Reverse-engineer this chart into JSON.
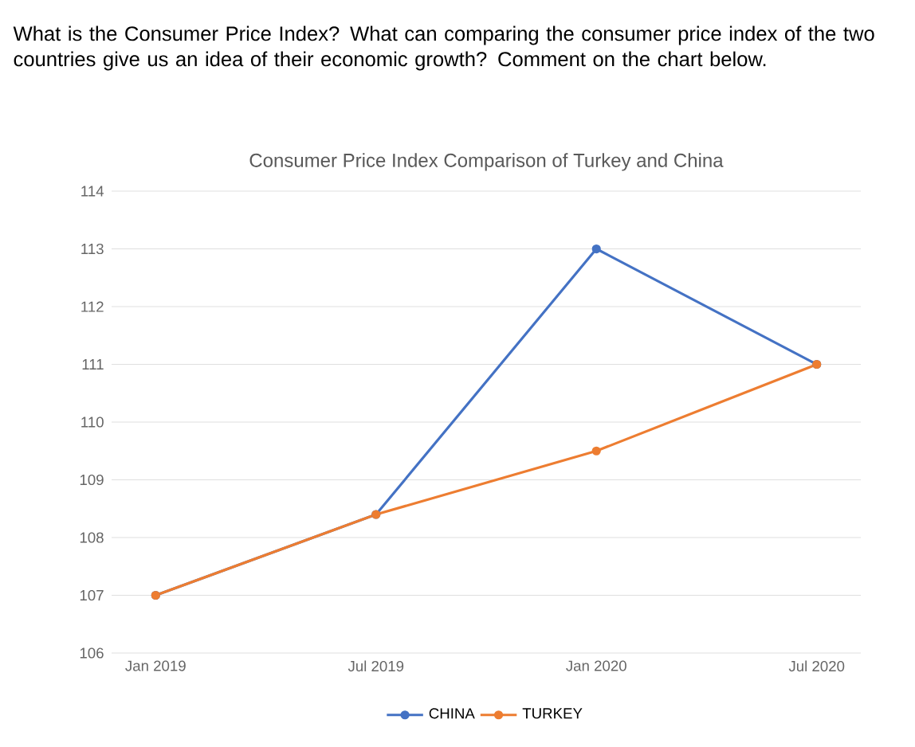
{
  "chart_data": {
    "type": "line",
    "title": "Consumer Price Index Comparison of Turkey and China",
    "annotations": [
      "What is the Consumer Price Index? What can comparing the consumer price index of the two countries give us an idea of their economic growth? Comment on the chart below."
    ],
    "categories": [
      "Jan 2019",
      "Jul 2019",
      "Jan 2020",
      "Jul 2020"
    ],
    "series": [
      {
        "name": "CHINA",
        "color": "#4472c4",
        "values": [
          107.0,
          108.4,
          113.0,
          111.0
        ]
      },
      {
        "name": "TURKEY",
        "color": "#ed7d31",
        "values": [
          107.0,
          108.4,
          109.5,
          111.0
        ]
      }
    ],
    "ylim": [
      106,
      114
    ],
    "yticks": [
      106,
      107,
      108,
      109,
      110,
      111,
      112,
      113,
      114
    ],
    "grid": "y",
    "legend": "bottom",
    "marker": "circle"
  }
}
